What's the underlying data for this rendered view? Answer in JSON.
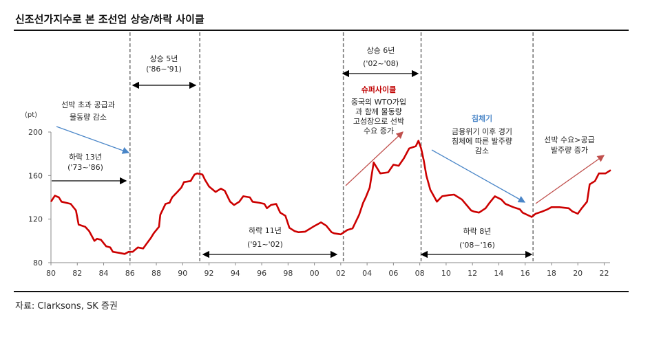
{
  "title": "신조선가지수로 본 조선업 상승/하락 사이클",
  "source": "자료: Clarksons, SK 증권",
  "chart_data": {
    "type": "line",
    "title": "신조선가지수로 본 조선업 상승/하락 사이클",
    "ylabel": "(pt)",
    "xlim": [
      1980,
      2022.7
    ],
    "ylim": [
      80,
      200
    ],
    "yticks": [
      80,
      120,
      160,
      200
    ],
    "xticks": [
      {
        "x": 1980,
        "label": "80"
      },
      {
        "x": 1982,
        "label": "82"
      },
      {
        "x": 1984,
        "label": "84"
      },
      {
        "x": 1986,
        "label": "86"
      },
      {
        "x": 1988,
        "label": "88"
      },
      {
        "x": 1990,
        "label": "90"
      },
      {
        "x": 1992,
        "label": "92"
      },
      {
        "x": 1994,
        "label": "94"
      },
      {
        "x": 1996,
        "label": "96"
      },
      {
        "x": 1998,
        "label": "98"
      },
      {
        "x": 2000,
        "label": "00"
      },
      {
        "x": 2002,
        "label": "02"
      },
      {
        "x": 2004,
        "label": "04"
      },
      {
        "x": 2006,
        "label": "06"
      },
      {
        "x": 2008,
        "label": "08"
      },
      {
        "x": 2010,
        "label": "10"
      },
      {
        "x": 2012,
        "label": "12"
      },
      {
        "x": 2014,
        "label": "14"
      },
      {
        "x": 2016,
        "label": "16"
      },
      {
        "x": 2018,
        "label": "18"
      },
      {
        "x": 2020,
        "label": "20"
      },
      {
        "x": 2022,
        "label": "22"
      }
    ],
    "grid": false,
    "series_color": "#cc0000",
    "x": [
      1980.0,
      1980.3,
      1980.6,
      1980.8,
      1981.5,
      1981.9,
      1982.1,
      1982.6,
      1982.9,
      1983.3,
      1983.5,
      1983.8,
      1984.2,
      1984.5,
      1984.7,
      1985.2,
      1985.6,
      1985.9,
      1986.2,
      1986.6,
      1987.0,
      1987.3,
      1987.6,
      1987.8,
      1988.2,
      1988.3,
      1988.7,
      1989.0,
      1989.2,
      1989.6,
      1989.9,
      1990.1,
      1990.6,
      1990.9,
      1991.1,
      1991.5,
      1991.7,
      1992.0,
      1992.5,
      1992.9,
      1993.2,
      1993.6,
      1993.9,
      1994.3,
      1994.6,
      1995.1,
      1995.3,
      1995.8,
      1996.2,
      1996.4,
      1996.7,
      1997.1,
      1997.4,
      1997.8,
      1998.1,
      1998.5,
      1998.8,
      1999.3,
      1999.9,
      2000.2,
      2000.5,
      2000.9,
      2001.3,
      2001.5,
      2002.0,
      2002.5,
      2002.9,
      2003.4,
      2003.7,
      2003.9,
      2004.2,
      2004.5,
      2005.0,
      2005.6,
      2006.0,
      2006.4,
      2006.8,
      2007.2,
      2007.7,
      2007.9,
      2008.1,
      2008.3,
      2008.5,
      2008.8,
      2009.3,
      2009.7,
      2010.2,
      2010.6,
      2011.2,
      2011.9,
      2012.1,
      2012.5,
      2013.0,
      2013.3,
      2013.7,
      2014.2,
      2014.5,
      2015.1,
      2015.6,
      2015.8,
      2016.5,
      2016.8,
      2017.3,
      2017.7,
      2018.0,
      2018.6,
      2019.3,
      2019.6,
      2020.0,
      2020.3,
      2020.7,
      2020.9,
      2021.3,
      2021.6,
      2022.1,
      2022.5
    ],
    "values": [
      136,
      141.5,
      140,
      136,
      134,
      128,
      115,
      113,
      109,
      100,
      102,
      101,
      95,
      94,
      90,
      89,
      88,
      90,
      90,
      94,
      93,
      98,
      103,
      107,
      113,
      124,
      134,
      135,
      140,
      145,
      149,
      154,
      155,
      161,
      162,
      161,
      156,
      150,
      145,
      148,
      146,
      136,
      133,
      136,
      141,
      140,
      136,
      135,
      134,
      130,
      133,
      134,
      126,
      123,
      112,
      109,
      108,
      108.5,
      113,
      115,
      117,
      114,
      108,
      107,
      106,
      110,
      111.5,
      124,
      135,
      140,
      149,
      172,
      162,
      163,
      170,
      169,
      176,
      185,
      187,
      192,
      185,
      174,
      160,
      147,
      136,
      141,
      142,
      142.5,
      138,
      128,
      127,
      126,
      130,
      135,
      141,
      138,
      134,
      131,
      129,
      126,
      122,
      125,
      127,
      129,
      131,
      131,
      130,
      127,
      125,
      130,
      136,
      152,
      155,
      162,
      162,
      165
    ],
    "cycle_lines": [
      1986.0,
      1991.3,
      2002.2,
      2008.1,
      2016.6
    ],
    "annotations": {
      "up5": {
        "label": "상승 5년",
        "period": "('86~'91)"
      },
      "up6": {
        "label": "상승 6년",
        "period": "('02~'08)"
      },
      "down13": {
        "label": "하락 13년",
        "period": "('73~'86)"
      },
      "down11": {
        "label": "하락 11년",
        "period": "('91~'02)"
      },
      "down8": {
        "label": "하락 8년",
        "period": "('08~'16)"
      },
      "oversupply": [
        "선박 초과 공급과",
        "물동량 감소"
      ],
      "supercycle": {
        "label": "슈퍼사이클",
        "color": "#c00000",
        "lines": [
          "중국의 WTO가입",
          "과 함께 물동량",
          "고성장으로 선박",
          "수요 증가"
        ]
      },
      "recession": {
        "label": "침체기",
        "color": "#4a86c8",
        "lines": [
          "금융위기 이후 경기",
          "침체에 따른 발주량",
          "감소"
        ]
      },
      "recovery": [
        "선박 수요>공급",
        "발주량 증가"
      ]
    }
  }
}
